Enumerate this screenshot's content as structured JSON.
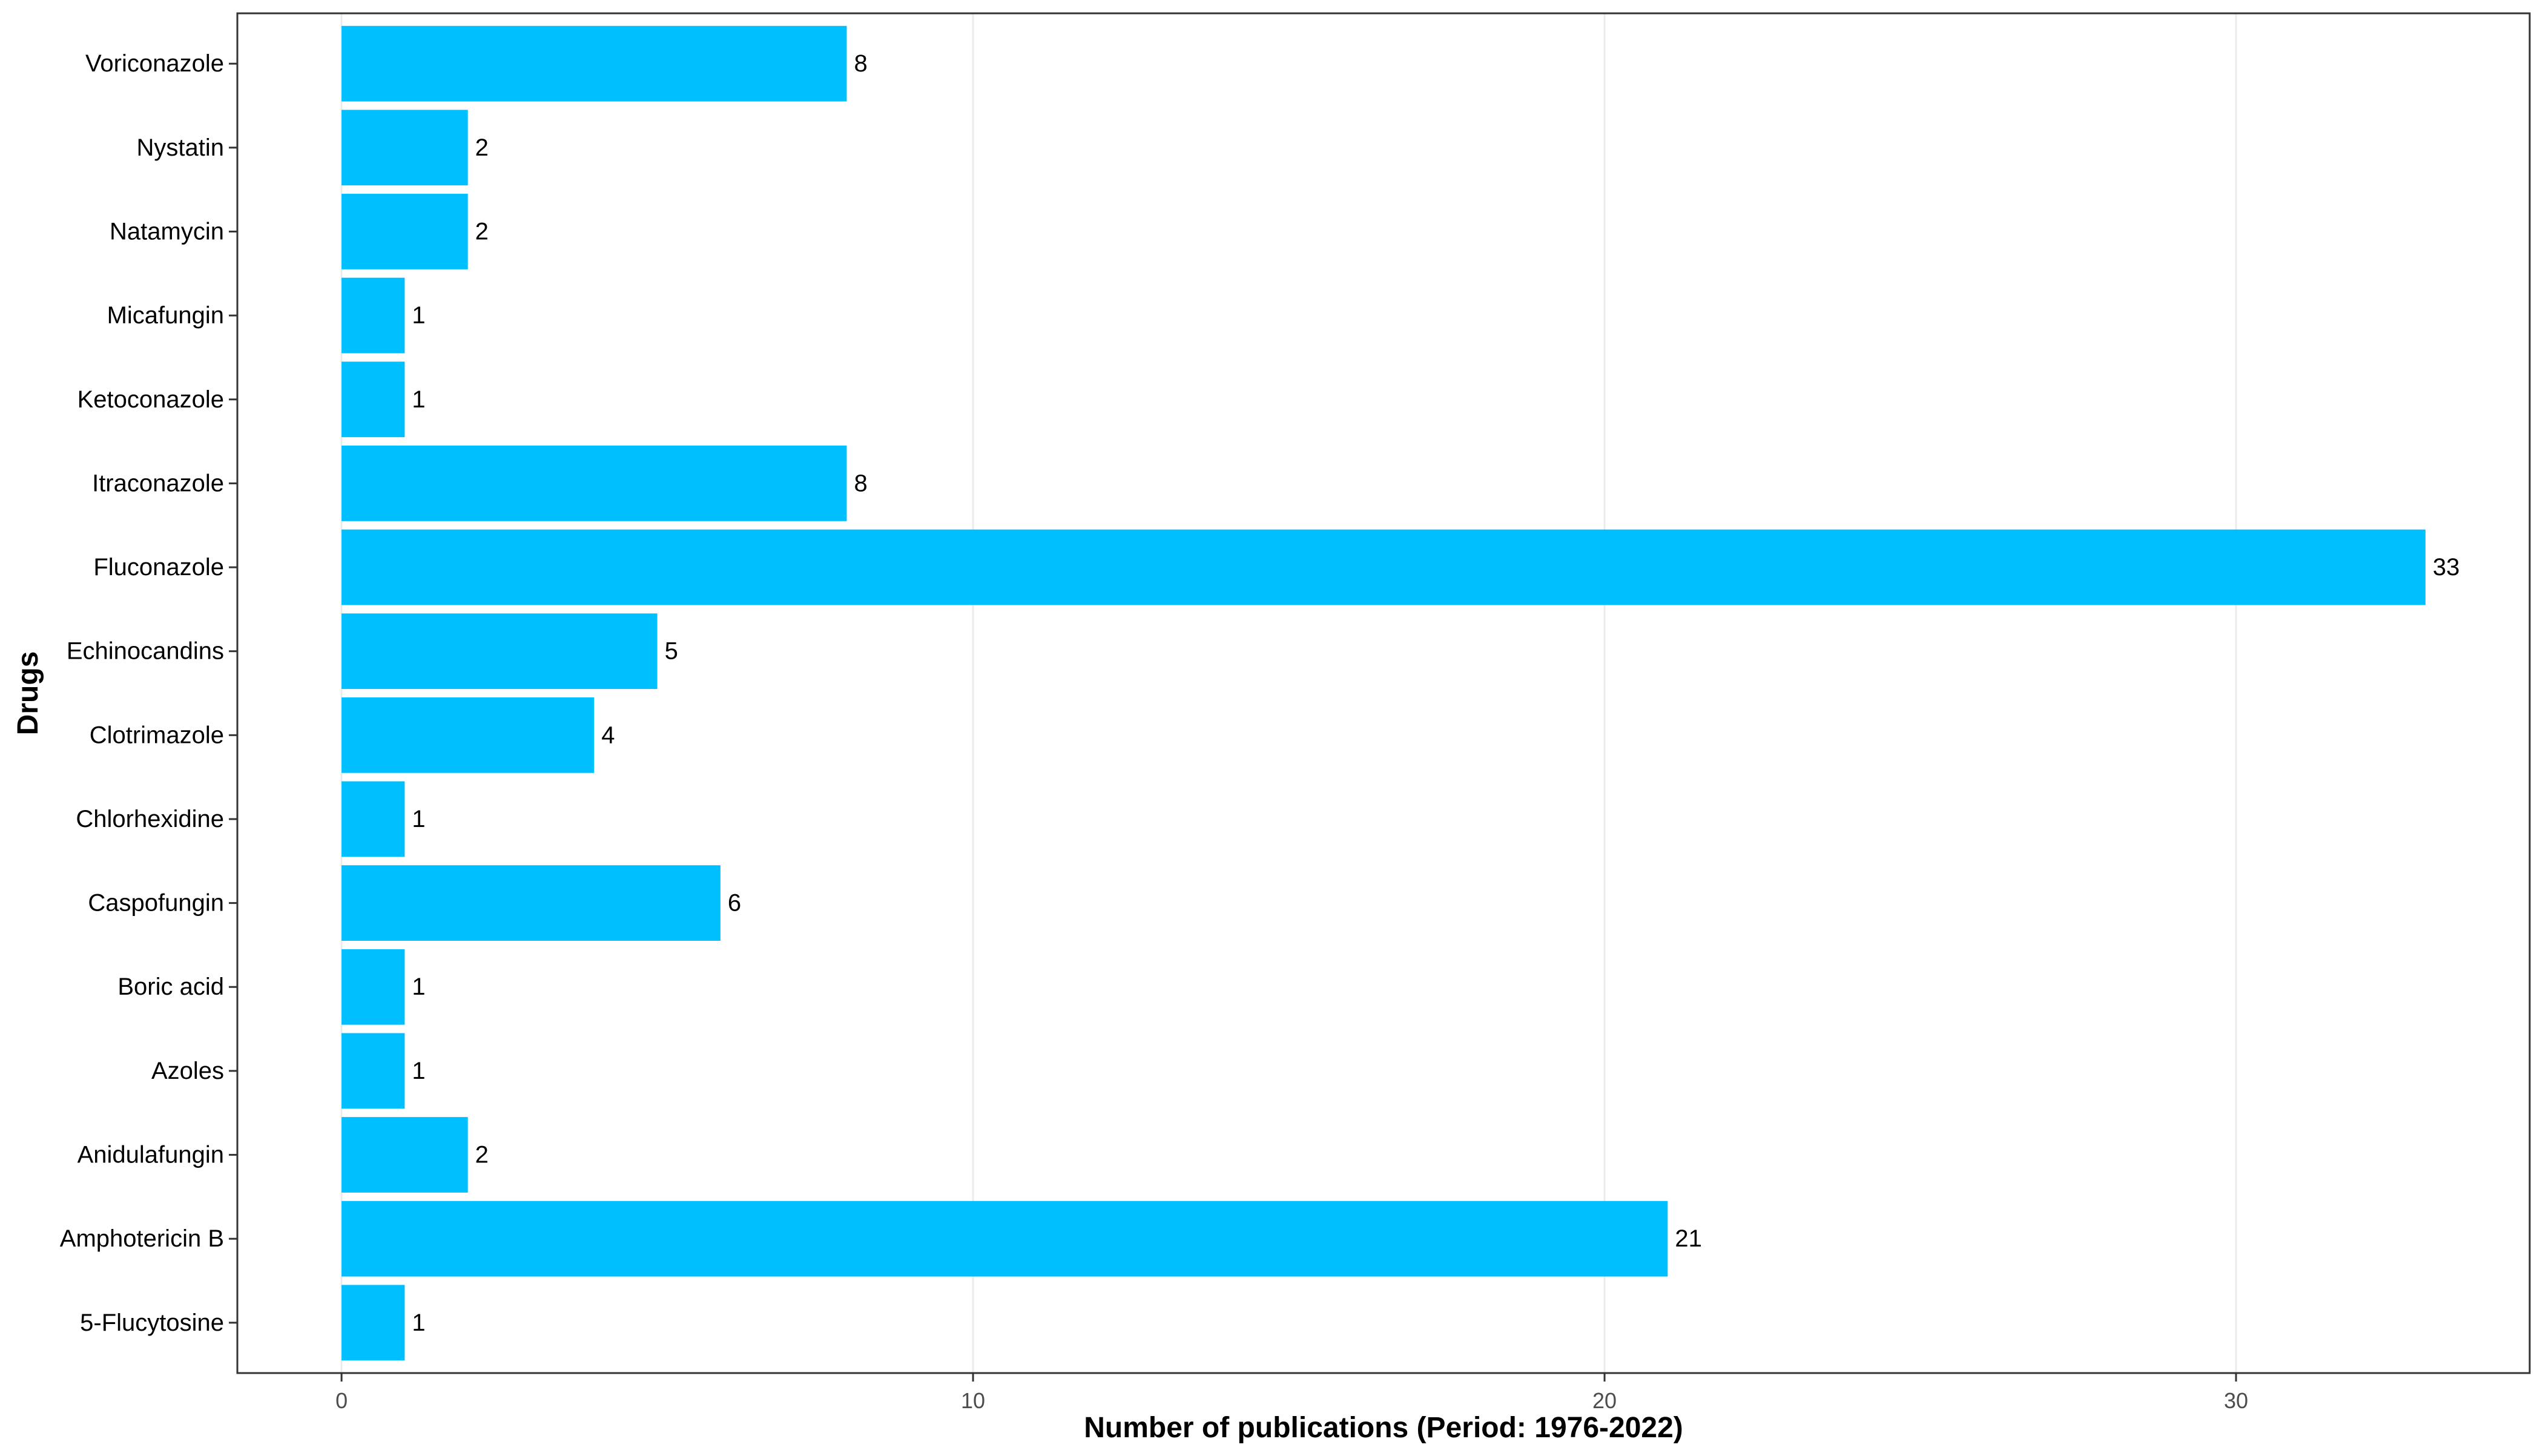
{
  "chart_data": {
    "type": "bar",
    "orientation": "horizontal",
    "categories": [
      "5-Flucytosine",
      "Amphotericin B",
      "Anidulafungin",
      "Azoles",
      "Boric acid",
      "Caspofungin",
      "Chlorhexidine",
      "Clotrimazole",
      "Echinocandins",
      "Fluconazole",
      "Itraconazole",
      "Ketoconazole",
      "Micafungin",
      "Natamycin",
      "Nystatin",
      "Voriconazole"
    ],
    "values": [
      1,
      21,
      2,
      1,
      1,
      6,
      1,
      4,
      5,
      33,
      8,
      1,
      1,
      2,
      2,
      8
    ],
    "data_labels": [
      "1",
      "21",
      "2",
      "1",
      "1",
      "6",
      "1",
      "4",
      "5",
      "33",
      "8",
      "1",
      "1",
      "2",
      "2",
      "8"
    ],
    "xlabel": "Number of publications (Period: 1976-2022)",
    "ylabel": "Drugs",
    "xlim": [
      -1.65,
      34.65
    ],
    "xticks": [
      0,
      10,
      20,
      30
    ],
    "xtick_labels": [
      "0",
      "10",
      "20",
      "30"
    ],
    "grid": "vertical major gridlines",
    "bar_color": "#00bfff",
    "grid_color": "#ebebeb",
    "panel_border_color": "#333333"
  }
}
